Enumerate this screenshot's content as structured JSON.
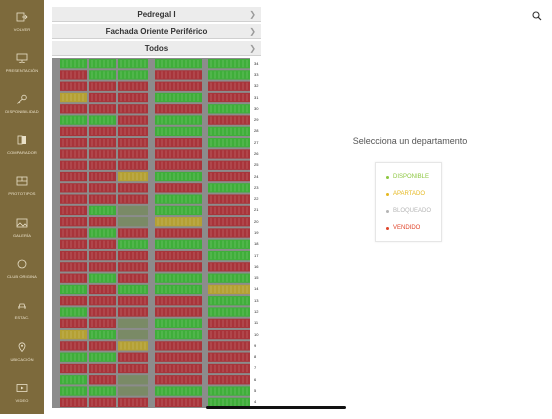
{
  "sidebar": {
    "items": [
      {
        "label": "VOLVER",
        "icon": "exit-icon"
      },
      {
        "label": "PRESENTACIÓN",
        "icon": "presentation-icon"
      },
      {
        "label": "DISPONIBILIDAD",
        "icon": "key-icon"
      },
      {
        "label": "COMPARADOR",
        "icon": "compare-icon"
      },
      {
        "label": "PROTOTIPOS",
        "icon": "floorplan-icon"
      },
      {
        "label": "GALERÍA",
        "icon": "gallery-icon"
      },
      {
        "label": "CLUB ORIGINA",
        "icon": "club-icon"
      },
      {
        "label": "ESTAC.",
        "icon": "parking-icon"
      },
      {
        "label": "UBICACIÓN",
        "icon": "location-icon"
      },
      {
        "label": "VIDEO",
        "icon": "video-icon"
      }
    ]
  },
  "filters": [
    {
      "label": "Pedregal I"
    },
    {
      "label": "Fachada Oriente Periférico"
    },
    {
      "label": "Todos"
    }
  ],
  "floors": [
    "34",
    "33",
    "32",
    "31",
    "30",
    "29",
    "28",
    "27",
    "26",
    "25",
    "24",
    "23",
    "22",
    "21",
    "20",
    "19",
    "18",
    "17",
    "16",
    "15",
    "14",
    "13",
    "12",
    "11",
    "10",
    "9",
    "8",
    "7",
    "6",
    "5",
    "4"
  ],
  "prompt": "Selecciona un departamento",
  "legend": [
    {
      "label": "DISPONIBLE",
      "color": "#8cc63f"
    },
    {
      "label": "APARTADO",
      "color": "#e5b820"
    },
    {
      "label": "BLOQUEADO",
      "color": "#b5b5b5"
    },
    {
      "label": "VENDIDO",
      "color": "#e0452b"
    }
  ],
  "colors": {
    "vendido": "#a8343a",
    "disponible": "#3fae3a",
    "apartado": "#b4a033",
    "sidebar": "#7d6a3c"
  }
}
